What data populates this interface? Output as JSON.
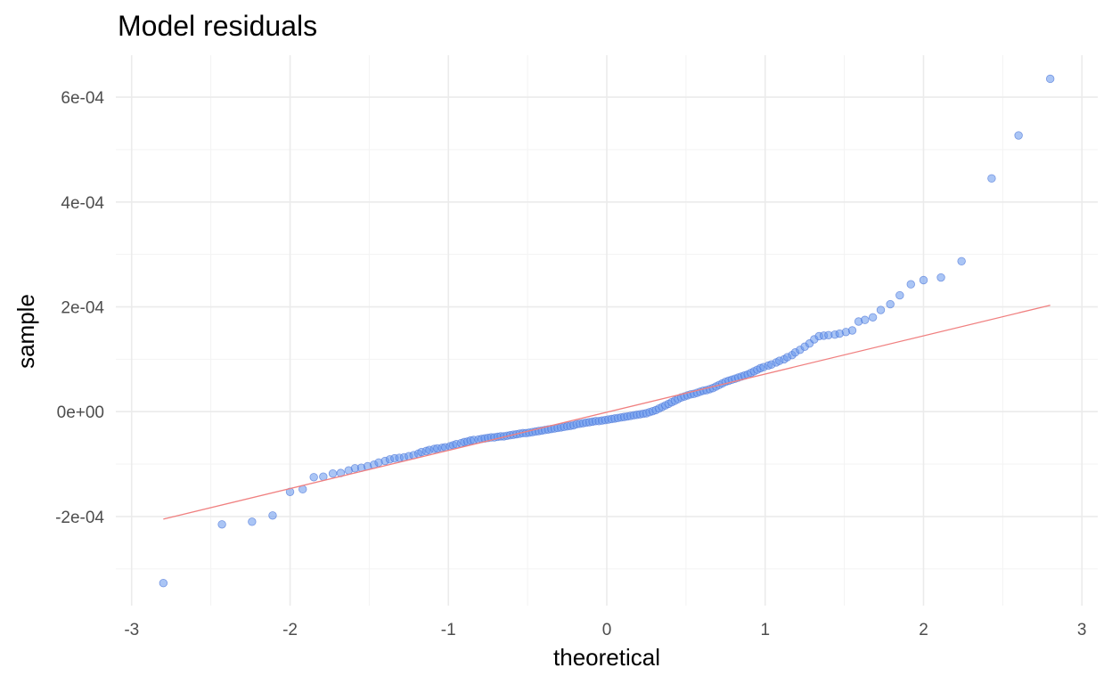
{
  "chart_data": {
    "type": "scatter",
    "title": "Model residuals",
    "xlabel": "theoretical",
    "ylabel": "sample",
    "xlim": [
      -3.1,
      3.1
    ],
    "ylim": [
      -0.00037,
      0.00068
    ],
    "x_ticks": [
      -3,
      -2,
      -1,
      0,
      1,
      2,
      3
    ],
    "x_tick_labels": [
      "-3",
      "-2",
      "-1",
      "0",
      "1",
      "2",
      "3"
    ],
    "y_ticks": [
      -0.0002,
      0,
      0.0002,
      0.0004,
      0.0006
    ],
    "y_tick_labels": [
      "-2e-04",
      "0e+00",
      "2e-04",
      "4e-04",
      "6e-04"
    ],
    "grid": true,
    "point_color": "#6495ED",
    "reference_line": {
      "color": "#F08080",
      "x": [
        -2.8,
        2.8
      ],
      "y": [
        -0.000205,
        0.000203
      ]
    },
    "series": [
      {
        "points": [
          [
            -2.8,
            -0.000327
          ],
          [
            -2.43,
            -0.000215
          ],
          [
            -2.24,
            -0.00021
          ],
          [
            -2.11,
            -0.000198
          ],
          [
            -2.0,
            -0.000153
          ],
          [
            -1.92,
            -0.000148
          ],
          [
            -1.85,
            -0.000125
          ],
          [
            -1.79,
            -0.000124
          ],
          [
            -1.73,
            -0.000118
          ],
          [
            -1.68,
            -0.000117
          ],
          [
            -1.63,
            -0.000112
          ],
          [
            -1.59,
            -0.000108
          ],
          [
            -1.55,
            -0.000107
          ],
          [
            -1.51,
            -0.000104
          ],
          [
            -1.47,
            -0.000101
          ],
          [
            -1.44,
            -9.7e-05
          ],
          [
            -1.4,
            -9.4e-05
          ],
          [
            -1.37,
            -9.1e-05
          ],
          [
            -1.34,
            -8.9e-05
          ],
          [
            -1.31,
            -8.8e-05
          ],
          [
            -1.28,
            -8.7e-05
          ],
          [
            -1.25,
            -8.5e-05
          ],
          [
            -1.22,
            -8.3e-05
          ],
          [
            -1.19,
            -8e-05
          ],
          [
            -1.17,
            -7.7e-05
          ],
          [
            -1.14,
            -7.5e-05
          ],
          [
            -1.12,
            -7.3e-05
          ],
          [
            -1.09,
            -7.1e-05
          ],
          [
            -1.07,
            -7e-05
          ],
          [
            -1.04,
            -6.9e-05
          ],
          [
            -1.02,
            -6.8e-05
          ],
          [
            -0.99,
            -6.6e-05
          ],
          [
            -0.97,
            -6.4e-05
          ],
          [
            -0.95,
            -6.2e-05
          ],
          [
            -0.92,
            -6e-05
          ],
          [
            -0.9,
            -5.8e-05
          ],
          [
            -0.88,
            -5.7e-05
          ],
          [
            -0.86,
            -5.5e-05
          ],
          [
            -0.84,
            -5.4e-05
          ],
          [
            -0.81,
            -5.3e-05
          ],
          [
            -0.79,
            -5.2e-05
          ],
          [
            -0.77,
            -5.1e-05
          ],
          [
            -0.75,
            -5e-05
          ],
          [
            -0.73,
            -4.9e-05
          ],
          [
            -0.71,
            -4.9e-05
          ],
          [
            -0.69,
            -4.8e-05
          ],
          [
            -0.67,
            -4.7e-05
          ],
          [
            -0.65,
            -4.7e-05
          ],
          [
            -0.63,
            -4.6e-05
          ],
          [
            -0.61,
            -4.5e-05
          ],
          [
            -0.59,
            -4.4e-05
          ],
          [
            -0.57,
            -4.3e-05
          ],
          [
            -0.55,
            -4.2e-05
          ],
          [
            -0.53,
            -4.1e-05
          ],
          [
            -0.51,
            -4.1e-05
          ],
          [
            -0.49,
            -4e-05
          ],
          [
            -0.47,
            -3.9e-05
          ],
          [
            -0.45,
            -3.8e-05
          ],
          [
            -0.43,
            -3.7e-05
          ],
          [
            -0.41,
            -3.6e-05
          ],
          [
            -0.39,
            -3.5e-05
          ],
          [
            -0.37,
            -3.4e-05
          ],
          [
            -0.35,
            -3.3e-05
          ],
          [
            -0.33,
            -3.2e-05
          ],
          [
            -0.31,
            -3.1e-05
          ],
          [
            -0.29,
            -3e-05
          ],
          [
            -0.27,
            -2.9e-05
          ],
          [
            -0.25,
            -2.8e-05
          ],
          [
            -0.23,
            -2.7e-05
          ],
          [
            -0.21,
            -2.6e-05
          ],
          [
            -0.19,
            -2.4e-05
          ],
          [
            -0.17,
            -2.3e-05
          ],
          [
            -0.15,
            -2.2e-05
          ],
          [
            -0.13,
            -2.1e-05
          ],
          [
            -0.11,
            -2e-05
          ],
          [
            -0.09,
            -1.9e-05
          ],
          [
            -0.07,
            -1.8e-05
          ],
          [
            -0.05,
            -1.8e-05
          ],
          [
            -0.03,
            -1.7e-05
          ],
          [
            -0.01,
            -1.6e-05
          ],
          [
            0.01,
            -1.5e-05
          ],
          [
            0.03,
            -1.4e-05
          ],
          [
            0.05,
            -1.3e-05
          ],
          [
            0.07,
            -1.2e-05
          ],
          [
            0.09,
            -1.1e-05
          ],
          [
            0.11,
            -1e-05
          ],
          [
            0.13,
            -9e-06
          ],
          [
            0.15,
            -8e-06
          ],
          [
            0.17,
            -7e-06
          ],
          [
            0.19,
            -6e-06
          ],
          [
            0.21,
            -5e-06
          ],
          [
            0.23,
            -4e-06
          ],
          [
            0.25,
            -3e-06
          ],
          [
            0.27,
            -1e-06
          ],
          [
            0.29,
            1e-06
          ],
          [
            0.31,
            3e-06
          ],
          [
            0.33,
            6e-06
          ],
          [
            0.35,
            9e-06
          ],
          [
            0.37,
            1.2e-05
          ],
          [
            0.39,
            1.5e-05
          ],
          [
            0.41,
            1.8e-05
          ],
          [
            0.43,
            2.1e-05
          ],
          [
            0.45,
            2.4e-05
          ],
          [
            0.47,
            2.7e-05
          ],
          [
            0.49,
            2.9e-05
          ],
          [
            0.51,
            3.1e-05
          ],
          [
            0.53,
            3.3e-05
          ],
          [
            0.55,
            3.4e-05
          ],
          [
            0.57,
            3.6e-05
          ],
          [
            0.59,
            3.8e-05
          ],
          [
            0.61,
            4e-05
          ],
          [
            0.63,
            4.1e-05
          ],
          [
            0.65,
            4.3e-05
          ],
          [
            0.67,
            4.5e-05
          ],
          [
            0.69,
            4.8e-05
          ],
          [
            0.71,
            5.1e-05
          ],
          [
            0.73,
            5.4e-05
          ],
          [
            0.75,
            5.7e-05
          ],
          [
            0.77,
            5.9e-05
          ],
          [
            0.79,
            6.1e-05
          ],
          [
            0.81,
            6.3e-05
          ],
          [
            0.83,
            6.5e-05
          ],
          [
            0.85,
            6.7e-05
          ],
          [
            0.87,
            6.9e-05
          ],
          [
            0.89,
            7.1e-05
          ],
          [
            0.91,
            7.4e-05
          ],
          [
            0.93,
            7.7e-05
          ],
          [
            0.95,
            8e-05
          ],
          [
            0.97,
            8.3e-05
          ],
          [
            0.99,
            8.5e-05
          ],
          [
            1.02,
            8.8e-05
          ],
          [
            1.04,
            9e-05
          ],
          [
            1.07,
            9.4e-05
          ],
          [
            1.09,
            9.7e-05
          ],
          [
            1.12,
            0.0001
          ],
          [
            1.14,
            0.000104
          ],
          [
            1.17,
            0.000108
          ],
          [
            1.19,
            0.000113
          ],
          [
            1.22,
            0.000118
          ],
          [
            1.25,
            0.000124
          ],
          [
            1.28,
            0.00013
          ],
          [
            1.31,
            0.000138
          ],
          [
            1.34,
            0.000144
          ],
          [
            1.37,
            0.000145
          ],
          [
            1.4,
            0.000146
          ],
          [
            1.44,
            0.000147
          ],
          [
            1.47,
            0.000149
          ],
          [
            1.51,
            0.000152
          ],
          [
            1.55,
            0.000155
          ],
          [
            1.59,
            0.000172
          ],
          [
            1.63,
            0.000175
          ],
          [
            1.68,
            0.00018
          ],
          [
            1.73,
            0.000194
          ],
          [
            1.79,
            0.000205
          ],
          [
            1.85,
            0.000222
          ],
          [
            1.92,
            0.000243
          ],
          [
            2.0,
            0.000251
          ],
          [
            2.11,
            0.000256
          ],
          [
            2.24,
            0.000287
          ],
          [
            2.43,
            0.000445
          ],
          [
            2.6,
            0.000527
          ],
          [
            2.8,
            0.000635
          ]
        ]
      }
    ]
  }
}
